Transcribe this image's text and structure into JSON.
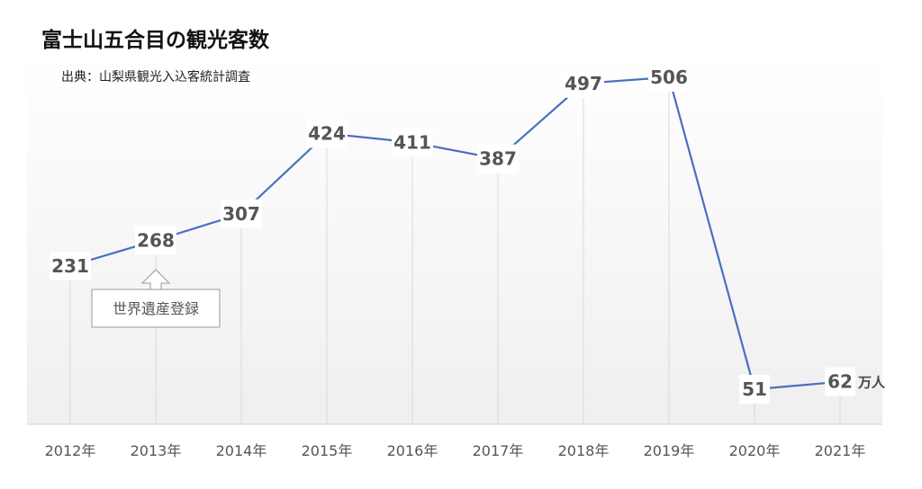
{
  "chart_data": {
    "type": "line",
    "title": "富士山五合目の観光客数",
    "source": "出典：山梨県観光入込客統計調査",
    "categories": [
      "2012年",
      "2013年",
      "2014年",
      "2015年",
      "2016年",
      "2017年",
      "2018年",
      "2019年",
      "2020年",
      "2021年"
    ],
    "series": [
      {
        "values": [
          231,
          268,
          307,
          424,
          411,
          387,
          497,
          506,
          51,
          62
        ],
        "color": "#4a6fbe"
      }
    ],
    "unit": "万人",
    "annotation": {
      "text": "世界遺産登録",
      "category": "2013年"
    },
    "ylim": [
      0,
      540
    ],
    "grid": "vertical",
    "legend": "none"
  }
}
